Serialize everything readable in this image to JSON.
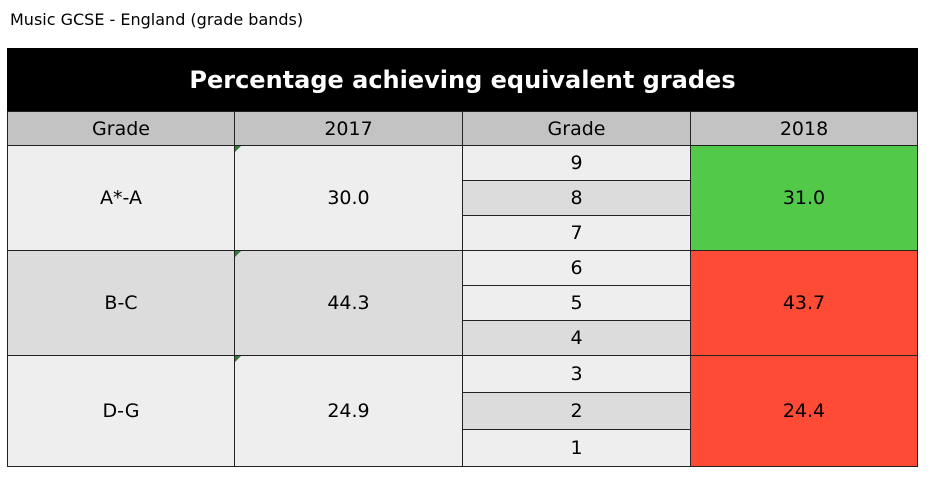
{
  "caption": "Music GCSE - England (grade bands)",
  "table": {
    "title": "Percentage achieving equivalent grades",
    "headers": [
      "Grade",
      "2017",
      "Grade",
      "2018"
    ],
    "rows": [
      {
        "old_grade": "A*-A",
        "value_2017": "30.0",
        "new_grades": [
          "9",
          "8",
          "7"
        ],
        "value_2018": "31.0",
        "status": "increase"
      },
      {
        "old_grade": "B-C",
        "value_2017": "44.3",
        "new_grades": [
          "6",
          "5",
          "4"
        ],
        "value_2018": "43.7",
        "status": "decrease"
      },
      {
        "old_grade": "D-G",
        "value_2017": "24.9",
        "new_grades": [
          "3",
          "2",
          "1"
        ],
        "value_2018": "24.4",
        "status": "decrease"
      }
    ]
  },
  "colors": {
    "increase": "#53c94a",
    "decrease": "#fe4b36",
    "header_bg": "#c3c3c3",
    "title_bg": "#000000"
  }
}
